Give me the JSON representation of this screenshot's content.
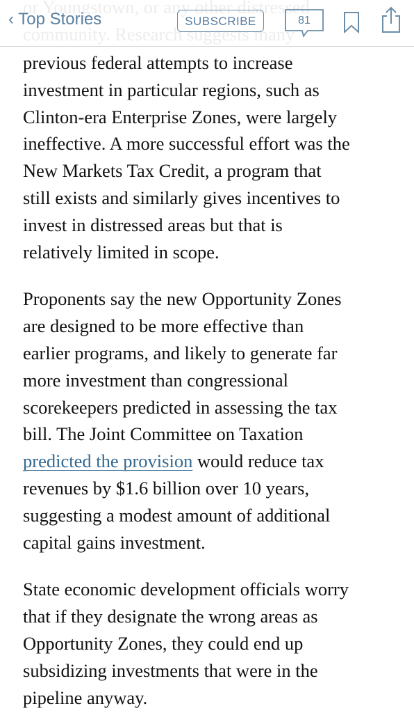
{
  "nav": {
    "back": "Top Stories",
    "subscribe": "SUBSCRIBE",
    "comments": "81"
  },
  "article": {
    "partial_lines": [
      "or Youngstown, or any other distressed",
      "community. Research suggests many"
    ],
    "paragraphs": [
      [
        "previous federal attempts to increase",
        "investment in particular regions, such as",
        "Clinton-era Enterprise Zones, were largely",
        "ineffective. A more successful effort was the",
        "New Markets Tax Credit, a program that",
        "still exists and similarly gives incentives to",
        "invest in distressed areas but that is",
        "relatively limited in scope."
      ],
      [
        "Proponents say the new Opportunity Zones",
        "are designed to be more effective than",
        "earlier programs, and likely to generate far",
        "more investment than congressional",
        "scorekeepers predicted in assessing the tax",
        "bill. The Joint Committee on Taxation",
        {
          "link": "predicted the provision",
          "text": "would reduce tax"
        },
        "revenues by $1.6 billion over 10 years,",
        "suggesting a modest amount of additional",
        "capital gains investment."
      ],
      [
        "State economic development officials worry",
        "that if they designate the wrong areas as",
        "Opportunity Zones, they could end up",
        "subsidizing investments that were in the",
        "pipeline anyway."
      ]
    ]
  }
}
